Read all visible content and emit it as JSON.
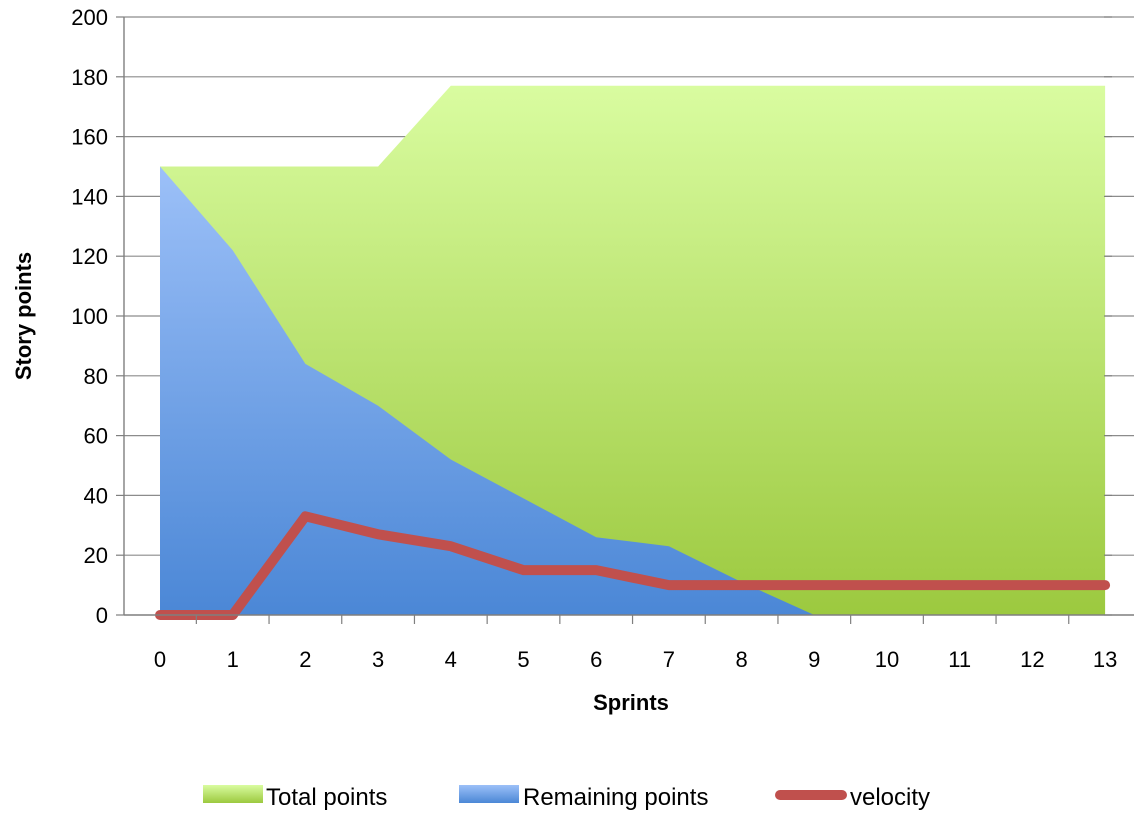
{
  "chart_data": {
    "type": "area",
    "title": "",
    "xlabel": "Sprints",
    "ylabel": "Story points",
    "x": [
      0,
      1,
      2,
      3,
      4,
      5,
      6,
      7,
      8,
      9,
      10,
      11,
      12,
      13
    ],
    "ylim": [
      0,
      200
    ],
    "yticks": [
      0,
      20,
      40,
      60,
      80,
      100,
      120,
      140,
      160,
      180,
      200
    ],
    "grid": true,
    "legend_position": "bottom",
    "series": [
      {
        "name": "Total points",
        "kind": "area",
        "color": "#9cc93f",
        "values": [
          150,
          150,
          150,
          150,
          177,
          177,
          177,
          177,
          177,
          177,
          177,
          177,
          177,
          177
        ]
      },
      {
        "name": "Remaining points",
        "kind": "area",
        "color": "#4f8fd9",
        "values": [
          150,
          122,
          84,
          70,
          52,
          39,
          26,
          23,
          11,
          0,
          0,
          0,
          0,
          0
        ]
      },
      {
        "name": "velocity",
        "kind": "line",
        "color": "#c0504d",
        "values": [
          0,
          0,
          33,
          27,
          23,
          15,
          15,
          10,
          10,
          10,
          10,
          10,
          10,
          10
        ]
      }
    ]
  }
}
